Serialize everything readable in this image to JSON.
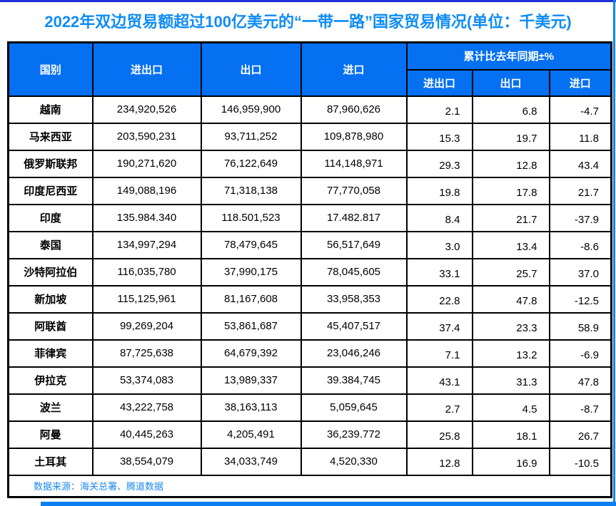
{
  "chart_data": {
    "type": "table",
    "title": "2022年双边贸易额超过100亿美元的“一带一路”国家贸易情况(单位：千美元)",
    "unit": "千美元",
    "header": {
      "country": "国别",
      "total": "进出口",
      "export": "出口",
      "import": "进口",
      "pct_group": "累计比去年同期±%",
      "pct_total": "进出口",
      "pct_export": "出口",
      "pct_import": "进口"
    },
    "rows": [
      {
        "country": "越南",
        "total": "234,920,526",
        "export": "146,959,900",
        "import": "87,960,626",
        "pct_total": "2.1",
        "pct_export": "6.8",
        "pct_import": "-4.7"
      },
      {
        "country": "马来西亚",
        "total": "203,590,231",
        "export": "93,711,252",
        "import": "109,878,980",
        "pct_total": "15.3",
        "pct_export": "19.7",
        "pct_import": "11.8"
      },
      {
        "country": "俄罗斯联邦",
        "total": "190,271,620",
        "export": "76,122,649",
        "import": "114,148,971",
        "pct_total": "29.3",
        "pct_export": "12.8",
        "pct_import": "43.4"
      },
      {
        "country": "印度尼西亚",
        "total": "149,088,196",
        "export": "71,318,138",
        "import": "77,770,058",
        "pct_total": "19.8",
        "pct_export": "17.8",
        "pct_import": "21.7"
      },
      {
        "country": "印度",
        "total": "135.984.340",
        "export": "118.501,523",
        "import": "17.482.817",
        "pct_total": "8.4",
        "pct_export": "21.7",
        "pct_import": "-37.9"
      },
      {
        "country": "泰国",
        "total": "134,997,294",
        "export": "78,479,645",
        "import": "56,517,649",
        "pct_total": "3.0",
        "pct_export": "13.4",
        "pct_import": "-8.6"
      },
      {
        "country": "沙特阿拉伯",
        "total": "116,035,780",
        "export": "37,990,175",
        "import": "78,045,605",
        "pct_total": "33.1",
        "pct_export": "25.7",
        "pct_import": "37.0"
      },
      {
        "country": "新加坡",
        "total": "115,125,961",
        "export": "81,167,608",
        "import": "33,958,353",
        "pct_total": "22.8",
        "pct_export": "47.8",
        "pct_import": "-12.5"
      },
      {
        "country": "阿联酋",
        "total": "99,269,204",
        "export": "53,861,687",
        "import": "45,407,517",
        "pct_total": "37.4",
        "pct_export": "23.3",
        "pct_import": "58.9"
      },
      {
        "country": "菲律宾",
        "total": "87,725,638",
        "export": "64,679,392",
        "import": "23,046,246",
        "pct_total": "7.1",
        "pct_export": "13.2",
        "pct_import": "-6.9"
      },
      {
        "country": "伊拉克",
        "total": "53,374,083",
        "export": "13,989,337",
        "import": "39.384,745",
        "pct_total": "43.1",
        "pct_export": "31.3",
        "pct_import": "47.8"
      },
      {
        "country": "波兰",
        "total": "43,222,758",
        "export": "38,163,113",
        "import": "5,059,645",
        "pct_total": "2.7",
        "pct_export": "4.5",
        "pct_import": "-8.7"
      },
      {
        "country": "阿曼",
        "total": "40,445,263",
        "export": "4,205,491",
        "import": "36,239.772",
        "pct_total": "25.8",
        "pct_export": "18.1",
        "pct_import": "26.7"
      },
      {
        "country": "土耳其",
        "total": "38,554,079",
        "export": "34,033,749",
        "import": "4,520,330",
        "pct_total": "12.8",
        "pct_export": "16.9",
        "pct_import": "-10.5"
      }
    ],
    "source": "数据来源：海关总署、腾道数据"
  },
  "colors": {
    "header_bg": "#0570f2",
    "title_text": "#0e8cf5",
    "source_text": "#1a87f0",
    "top_strip": "#2130d8",
    "right_strip": "#0b86f2",
    "bottom_strip": "#0d7ff2",
    "grid_border": "#000000"
  }
}
